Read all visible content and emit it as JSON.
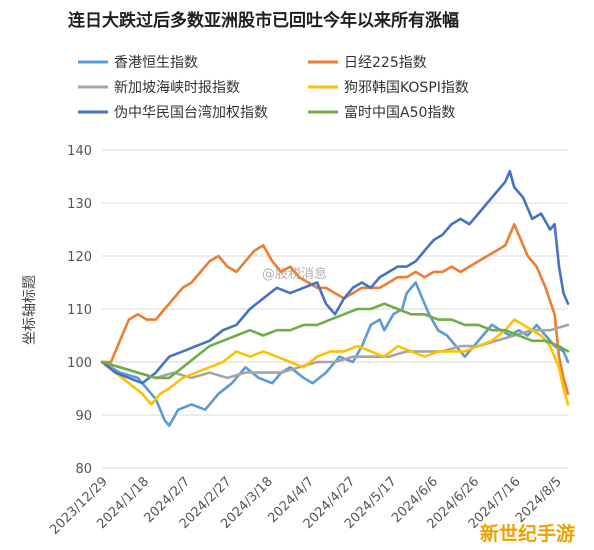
{
  "colors": {
    "hangseng": "#5b9bd5",
    "nikkei": "#ed7d31",
    "sti": "#a5a5a5",
    "kospi": "#ffc000",
    "taiex": "#4472c4",
    "ftse_a50": "#70ad47"
  },
  "watermark": "@股税消息",
  "corner_mark": "新世纪手游",
  "chart_data": {
    "type": "line",
    "title": "连日大跌过后多数亚洲股市已回吐今年以来所有涨幅",
    "ylabel": "坐标轴标题",
    "xlabel": "",
    "ylim": [
      80,
      140
    ],
    "yticks": [
      80,
      90,
      100,
      110,
      120,
      130,
      140
    ],
    "x_tick_labels": [
      "2023/12/29",
      "2024/1/18",
      "2024/2/7",
      "2024/2/27",
      "2024/3/18",
      "2024/4/7",
      "2024/4/27",
      "2024/5/17",
      "2024/6/6",
      "2024/6/26",
      "2024/7/16",
      "2024/8/5"
    ],
    "grid": true,
    "legend_position": "top",
    "series": [
      {
        "name": "香港恒生指数",
        "color_key": "hangseng",
        "values": [
          [
            0,
            100
          ],
          [
            4,
            98
          ],
          [
            8,
            97
          ],
          [
            12,
            93
          ],
          [
            14,
            89
          ],
          [
            15,
            88
          ],
          [
            17,
            91
          ],
          [
            20,
            92
          ],
          [
            23,
            91
          ],
          [
            26,
            94
          ],
          [
            29,
            96
          ],
          [
            32,
            99
          ],
          [
            35,
            97
          ],
          [
            38,
            96
          ],
          [
            40,
            98
          ],
          [
            42,
            99
          ],
          [
            45,
            97
          ],
          [
            47,
            96
          ],
          [
            50,
            98
          ],
          [
            53,
            101
          ],
          [
            56,
            100
          ],
          [
            58,
            103
          ],
          [
            60,
            107
          ],
          [
            62,
            108
          ],
          [
            63,
            106
          ],
          [
            65,
            109
          ],
          [
            67,
            110
          ],
          [
            68,
            113
          ],
          [
            70,
            115
          ],
          [
            71,
            113
          ],
          [
            73,
            109
          ],
          [
            75,
            106
          ],
          [
            77,
            105
          ],
          [
            79,
            103
          ],
          [
            81,
            101
          ],
          [
            83,
            103
          ],
          [
            85,
            105
          ],
          [
            87,
            107
          ],
          [
            89,
            106
          ],
          [
            91,
            105
          ],
          [
            93,
            106
          ],
          [
            95,
            105
          ],
          [
            97,
            107
          ],
          [
            99,
            105
          ],
          [
            101,
            103
          ],
          [
            103,
            102
          ],
          [
            104,
            100
          ]
        ]
      },
      {
        "name": "日经225指数",
        "color_key": "nikkei",
        "values": [
          [
            0,
            100
          ],
          [
            2,
            100
          ],
          [
            4,
            104
          ],
          [
            6,
            108
          ],
          [
            8,
            109
          ],
          [
            10,
            108
          ],
          [
            12,
            108
          ],
          [
            14,
            110
          ],
          [
            16,
            112
          ],
          [
            18,
            114
          ],
          [
            20,
            115
          ],
          [
            22,
            117
          ],
          [
            24,
            119
          ],
          [
            26,
            120
          ],
          [
            28,
            118
          ],
          [
            30,
            117
          ],
          [
            32,
            119
          ],
          [
            34,
            121
          ],
          [
            36,
            122
          ],
          [
            38,
            119
          ],
          [
            40,
            117
          ],
          [
            42,
            118
          ],
          [
            44,
            116
          ],
          [
            46,
            115
          ],
          [
            48,
            114
          ],
          [
            50,
            114
          ],
          [
            52,
            113
          ],
          [
            54,
            112
          ],
          [
            56,
            113
          ],
          [
            58,
            114
          ],
          [
            60,
            114
          ],
          [
            62,
            114
          ],
          [
            64,
            115
          ],
          [
            66,
            116
          ],
          [
            68,
            116
          ],
          [
            70,
            117
          ],
          [
            72,
            116
          ],
          [
            74,
            117
          ],
          [
            76,
            117
          ],
          [
            78,
            118
          ],
          [
            80,
            117
          ],
          [
            82,
            118
          ],
          [
            84,
            119
          ],
          [
            86,
            120
          ],
          [
            88,
            121
          ],
          [
            90,
            122
          ],
          [
            91,
            124
          ],
          [
            92,
            126
          ],
          [
            93,
            124
          ],
          [
            95,
            120
          ],
          [
            97,
            118
          ],
          [
            99,
            114
          ],
          [
            101,
            109
          ],
          [
            102,
            101
          ],
          [
            103,
            97
          ],
          [
            104,
            94
          ]
        ]
      },
      {
        "name": "新加坡海峡时报指数",
        "color_key": "sti",
        "values": [
          [
            0,
            100
          ],
          [
            4,
            99
          ],
          [
            8,
            98
          ],
          [
            12,
            97
          ],
          [
            16,
            98
          ],
          [
            20,
            97
          ],
          [
            24,
            98
          ],
          [
            28,
            97
          ],
          [
            32,
            98
          ],
          [
            36,
            98
          ],
          [
            40,
            98
          ],
          [
            44,
            99
          ],
          [
            48,
            100
          ],
          [
            52,
            100
          ],
          [
            56,
            101
          ],
          [
            60,
            101
          ],
          [
            64,
            101
          ],
          [
            68,
            102
          ],
          [
            72,
            102
          ],
          [
            76,
            102
          ],
          [
            80,
            103
          ],
          [
            84,
            103
          ],
          [
            88,
            104
          ],
          [
            92,
            105
          ],
          [
            96,
            106
          ],
          [
            100,
            106
          ],
          [
            104,
            107
          ]
        ]
      },
      {
        "name": "狗邪韩国KOSPI指数",
        "color_key": "kospi",
        "values": [
          [
            0,
            100
          ],
          [
            3,
            98
          ],
          [
            6,
            96
          ],
          [
            9,
            94
          ],
          [
            11,
            92
          ],
          [
            13,
            94
          ],
          [
            15,
            95
          ],
          [
            18,
            97
          ],
          [
            21,
            98
          ],
          [
            24,
            99
          ],
          [
            27,
            100
          ],
          [
            30,
            102
          ],
          [
            33,
            101
          ],
          [
            36,
            102
          ],
          [
            39,
            101
          ],
          [
            42,
            100
          ],
          [
            45,
            99
          ],
          [
            48,
            101
          ],
          [
            51,
            102
          ],
          [
            54,
            102
          ],
          [
            57,
            103
          ],
          [
            60,
            102
          ],
          [
            63,
            101
          ],
          [
            66,
            103
          ],
          [
            69,
            102
          ],
          [
            72,
            101
          ],
          [
            75,
            102
          ],
          [
            78,
            102
          ],
          [
            81,
            102
          ],
          [
            84,
            103
          ],
          [
            87,
            104
          ],
          [
            90,
            106
          ],
          [
            92,
            108
          ],
          [
            94,
            107
          ],
          [
            96,
            106
          ],
          [
            98,
            105
          ],
          [
            100,
            103
          ],
          [
            102,
            99
          ],
          [
            103,
            95
          ],
          [
            104,
            92
          ]
        ]
      },
      {
        "name": "伪中华民国台湾加权指数",
        "color_key": "taiex",
        "values": [
          [
            0,
            100
          ],
          [
            3,
            98
          ],
          [
            6,
            97
          ],
          [
            9,
            96
          ],
          [
            12,
            98
          ],
          [
            15,
            101
          ],
          [
            18,
            102
          ],
          [
            21,
            103
          ],
          [
            24,
            104
          ],
          [
            27,
            106
          ],
          [
            30,
            107
          ],
          [
            33,
            110
          ],
          [
            36,
            112
          ],
          [
            39,
            114
          ],
          [
            42,
            113
          ],
          [
            45,
            114
          ],
          [
            48,
            115
          ],
          [
            50,
            111
          ],
          [
            52,
            109
          ],
          [
            54,
            112
          ],
          [
            56,
            114
          ],
          [
            58,
            115
          ],
          [
            60,
            114
          ],
          [
            62,
            116
          ],
          [
            64,
            117
          ],
          [
            66,
            118
          ],
          [
            68,
            118
          ],
          [
            70,
            119
          ],
          [
            72,
            121
          ],
          [
            74,
            123
          ],
          [
            76,
            124
          ],
          [
            78,
            126
          ],
          [
            80,
            127
          ],
          [
            82,
            126
          ],
          [
            84,
            128
          ],
          [
            86,
            130
          ],
          [
            88,
            132
          ],
          [
            90,
            134
          ],
          [
            91,
            136
          ],
          [
            92,
            133
          ],
          [
            94,
            131
          ],
          [
            96,
            127
          ],
          [
            98,
            128
          ],
          [
            100,
            125
          ],
          [
            101,
            126
          ],
          [
            102,
            118
          ],
          [
            103,
            113
          ],
          [
            104,
            111
          ]
        ]
      },
      {
        "name": "富时中国A50指数",
        "color_key": "ftse_a50",
        "values": [
          [
            0,
            100
          ],
          [
            4,
            99
          ],
          [
            8,
            98
          ],
          [
            12,
            97
          ],
          [
            15,
            97
          ],
          [
            18,
            99
          ],
          [
            21,
            101
          ],
          [
            24,
            103
          ],
          [
            27,
            104
          ],
          [
            30,
            105
          ],
          [
            33,
            106
          ],
          [
            36,
            105
          ],
          [
            39,
            106
          ],
          [
            42,
            106
          ],
          [
            45,
            107
          ],
          [
            48,
            107
          ],
          [
            51,
            108
          ],
          [
            54,
            109
          ],
          [
            57,
            110
          ],
          [
            60,
            110
          ],
          [
            63,
            111
          ],
          [
            66,
            110
          ],
          [
            69,
            109
          ],
          [
            72,
            109
          ],
          [
            75,
            108
          ],
          [
            78,
            108
          ],
          [
            81,
            107
          ],
          [
            84,
            107
          ],
          [
            87,
            106
          ],
          [
            90,
            106
          ],
          [
            93,
            105
          ],
          [
            96,
            104
          ],
          [
            99,
            104
          ],
          [
            102,
            103
          ],
          [
            104,
            102
          ]
        ]
      }
    ]
  }
}
